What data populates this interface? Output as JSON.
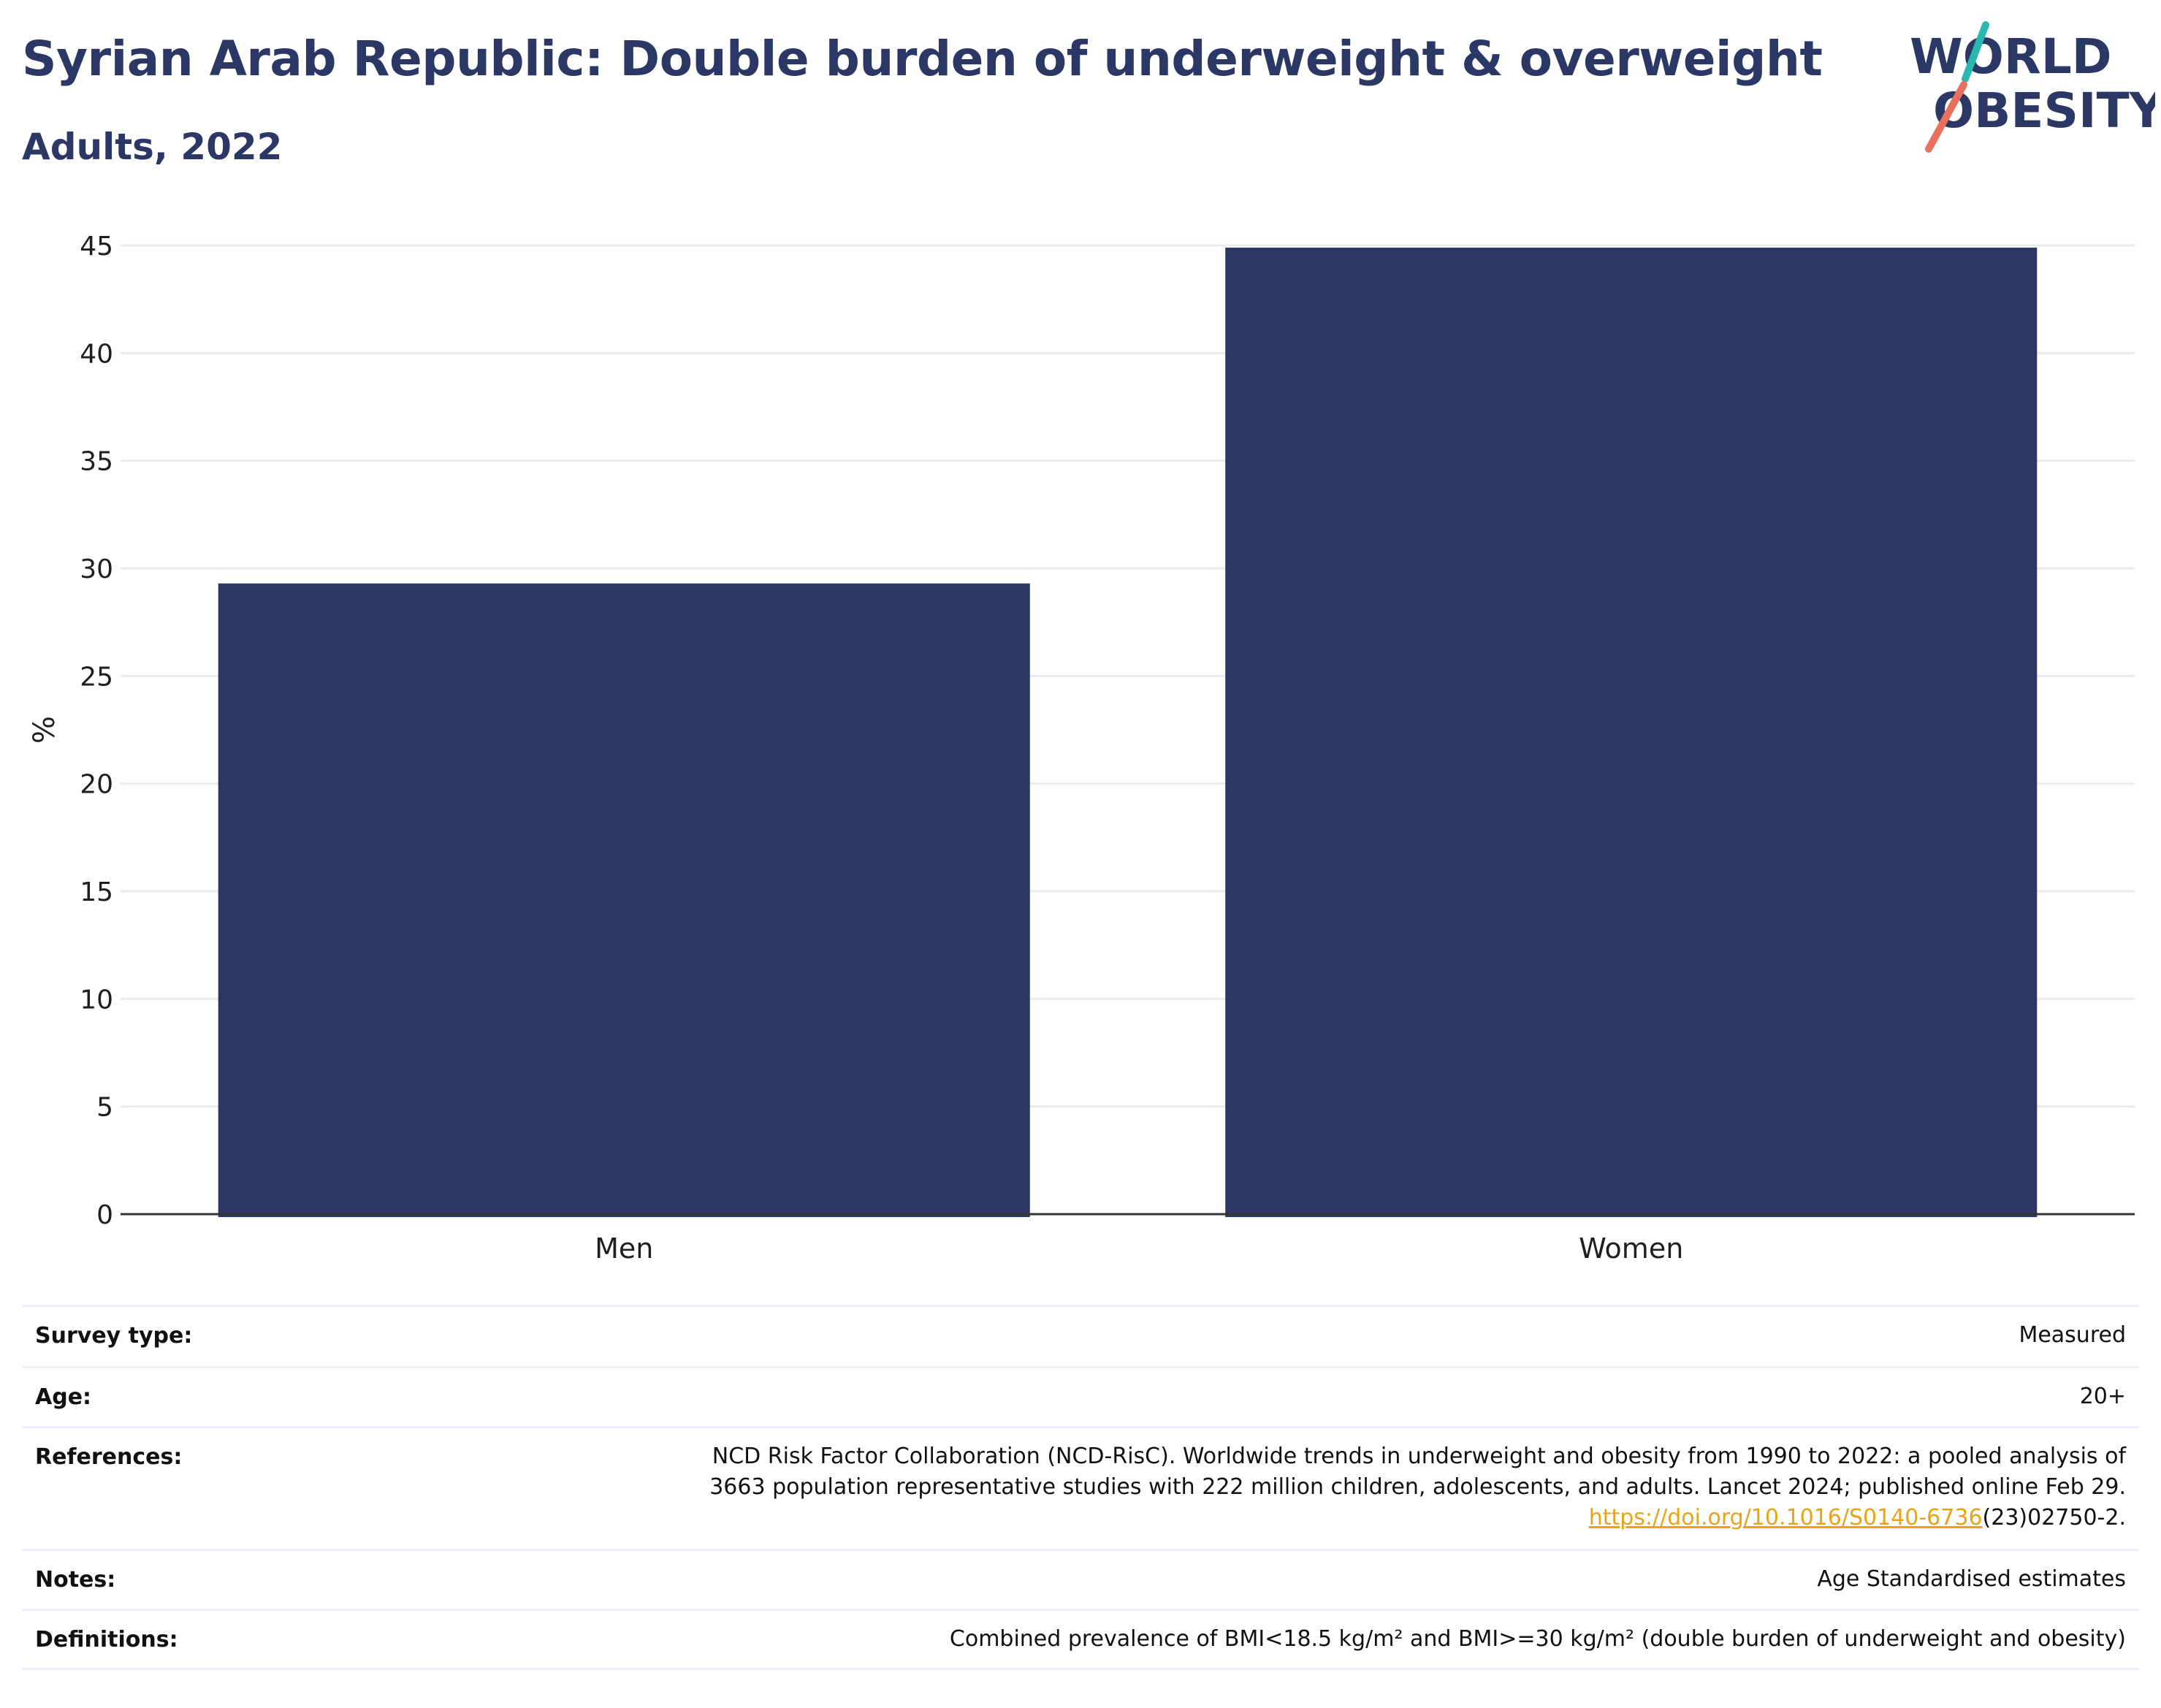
{
  "header": {
    "title": "Syrian Arab Republic: Double burden of underweight & overweight",
    "subtitle": "Adults, 2022"
  },
  "logo": {
    "line1": "WORLD",
    "line2": "OBESITY",
    "colors": {
      "text": "#2b3764",
      "teal": "#2ab7b0",
      "coral": "#e8705f"
    }
  },
  "chart_data": {
    "type": "bar",
    "categories": [
      "Men",
      "Women"
    ],
    "values": [
      29.3,
      44.9
    ],
    "ylabel": "%",
    "ylim": [
      0,
      45
    ],
    "yticks": [
      0,
      5,
      10,
      15,
      20,
      25,
      30,
      35,
      40,
      45
    ],
    "grid": true,
    "bar_color": "#2b3764"
  },
  "info_table": {
    "survey_type": {
      "label": "Survey type:",
      "value": "Measured"
    },
    "age": {
      "label": "Age:",
      "value": "20+"
    },
    "references": {
      "label": "References:",
      "line1": "NCD Risk Factor Collaboration (NCD-RisC). Worldwide trends in underweight and obesity from 1990 to 2022: a pooled analysis of",
      "line2": "3663 population representative studies with 222 million children, adolescents, and adults. Lancet 2024; published online Feb 29.",
      "link_text": "https://doi.org/10.1016/S0140-6736",
      "link_suffix": "(23)02750-2."
    },
    "notes": {
      "label": "Notes:",
      "value": "Age Standardised estimates"
    },
    "definitions": {
      "label": "Definitions:",
      "value": "Combined prevalence of BMI<18.5 kg/m² and BMI>=30 kg/m² (double burden of underweight and obesity)"
    }
  }
}
